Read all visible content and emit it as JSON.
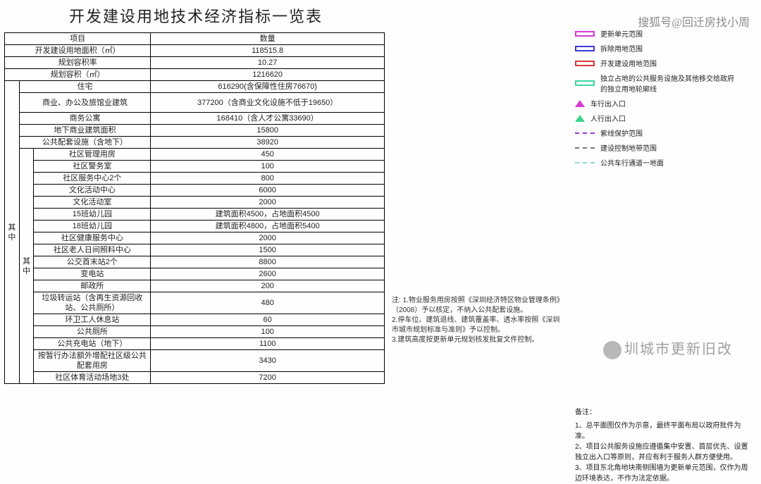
{
  "title": "开发建设用地技术经济指标一览表",
  "header": {
    "col1": "项目",
    "col2": "数量"
  },
  "top_rows": [
    {
      "label": "开发建设用地面积（㎡）",
      "value": "118515.8"
    },
    {
      "label": "规划容积率",
      "value": "10.27"
    },
    {
      "label": "规划容积（㎡）",
      "value": "1216620"
    }
  ],
  "side1_label": "其中",
  "side2_label": "其中",
  "mid_rows": [
    {
      "label": "住宅",
      "value": "616290(含保障性住房76670)"
    },
    {
      "label": "商业、办公及旅馆业建筑",
      "value": "377200（含商业文化设施不低于19650）"
    },
    {
      "label": "商务公寓",
      "value": "168410（含人才公寓33690）"
    },
    {
      "label": "地下商业建筑面积",
      "value": "15800"
    },
    {
      "label": "公共配套设施（含地下）",
      "value": "38920"
    }
  ],
  "sub_rows": [
    {
      "label": "社区管理用房",
      "value": "450"
    },
    {
      "label": "社区警务室",
      "value": "100"
    },
    {
      "label": "社区服务中心2个",
      "value": "800"
    },
    {
      "label": "文化活动中心",
      "value": "6000"
    },
    {
      "label": "文化活动室",
      "value": "2000"
    },
    {
      "label": "15班幼儿园",
      "value": "建筑面积4500，占地面积4500"
    },
    {
      "label": "18班幼儿园",
      "value": "建筑面积4800，占地面积5400"
    },
    {
      "label": "社区健康服务中心",
      "value": "2000"
    },
    {
      "label": "社区老人日间照料中心",
      "value": "1500"
    },
    {
      "label": "公交首末站2个",
      "value": "8800"
    },
    {
      "label": "变电站",
      "value": "2600"
    },
    {
      "label": "邮政所",
      "value": "200"
    },
    {
      "label": "垃圾转运站（含再生资源回收站、公共厕所）",
      "value": "480"
    },
    {
      "label": "环卫工人休息站",
      "value": "60"
    },
    {
      "label": "公共厕所",
      "value": "100"
    },
    {
      "label": "公共充电站（地下）",
      "value": "1100"
    },
    {
      "label": "按暂行办法额外增配社区级公共配套用房",
      "value": "3430"
    },
    {
      "label": "社区体育活动场地3处",
      "value": "7200"
    }
  ],
  "legend": [
    {
      "label": "更新单元范围",
      "color": "#d63ad6",
      "type": "box"
    },
    {
      "label": "拆除用地范围",
      "color": "#3a3ad6",
      "type": "box"
    },
    {
      "label": "开发建设用地范围",
      "color": "#d63a3a",
      "type": "box"
    },
    {
      "label": "独立占地的公共服务设施及其他移交给政府的独立用地轮廓线",
      "color": "#3ad6a0",
      "type": "box"
    },
    {
      "label": "车行出入口",
      "color": "#d63ad6",
      "type": "tri"
    },
    {
      "label": "人行出入口",
      "color": "#3ad68a",
      "type": "tri"
    },
    {
      "label": "紫线保护范围",
      "color": "#8a3ad6",
      "type": "dash"
    },
    {
      "label": "建设控制地带范围",
      "color": "#777",
      "type": "dash"
    },
    {
      "label": "公共车行通道一地面",
      "color": "#8ad6d2",
      "type": "dash"
    }
  ],
  "notes_title": "注:",
  "notes": [
    "1.物业服务用房按照《深圳经济特区物业管理条例》（2008）予以核定，不纳入公共配套设施。",
    "2.停车位、建筑退线、建筑覆盖率、透水率按照《深圳市城市规划标准与准则》予以控制。",
    "3.建筑高度按更新单元规划核发批复文件控制。"
  ],
  "remarks_title": "备注：",
  "remarks": [
    "1、总平面图仅作为示意，最终平面布局以政府批件为准。",
    "2、项目公共服务设施应遵循集中安置、首层优先、设置独立出入口等原则，并应有利于服务人群方便使用。",
    "3、项目东北角地块南侧围墙为更新单元范围，仅作为周边环境表达，不作为法定依据。"
  ],
  "watermark1": "搜狐号@回迁房找小周",
  "watermark2": "圳城市更新旧改"
}
